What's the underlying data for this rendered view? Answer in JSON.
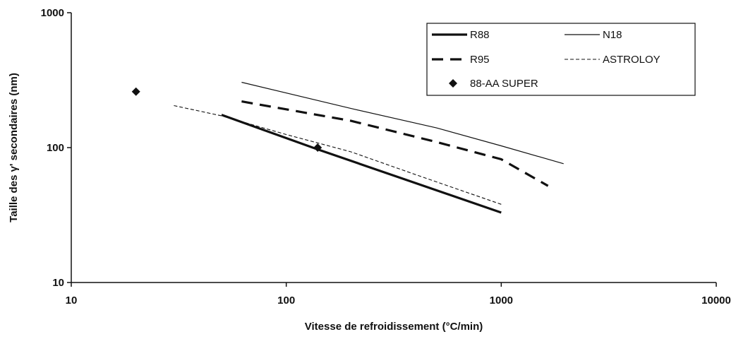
{
  "chart_data": {
    "type": "line",
    "title": "",
    "xlabel": "Vitesse de refroidissement (°C/min)",
    "ylabel": "Taille des γ' secondaires (nm)",
    "x_scale": "log",
    "y_scale": "log",
    "xlim": [
      10,
      10000
    ],
    "ylim": [
      10,
      1000
    ],
    "x_ticks": [
      10,
      100,
      1000,
      10000
    ],
    "x_tick_labels": [
      "10",
      "100",
      "1000",
      "10000"
    ],
    "y_ticks": [
      10,
      100,
      1000
    ],
    "y_tick_labels": [
      "10",
      "100",
      "1000"
    ],
    "grid": false,
    "legend_position": "top-right",
    "series": [
      {
        "name": "R88",
        "style": "thick-solid",
        "color": "#111111",
        "x": [
          50,
          140,
          1000
        ],
        "y": [
          175,
          97,
          33
        ]
      },
      {
        "name": "N18",
        "style": "thin-solid",
        "color": "#111111",
        "x": [
          62,
          200,
          500,
          1000,
          1950
        ],
        "y": [
          305,
          195,
          140,
          103,
          76
        ]
      },
      {
        "name": "R95",
        "style": "thick-dashed",
        "color": "#111111",
        "x": [
          62,
          200,
          500,
          1000,
          1650
        ],
        "y": [
          220,
          158,
          110,
          82,
          52
        ]
      },
      {
        "name": "ASTROLOY",
        "style": "thin-dashed",
        "color": "#111111",
        "x": [
          30,
          50,
          100,
          200,
          400,
          1000
        ],
        "y": [
          205,
          172,
          125,
          93,
          63,
          38
        ]
      },
      {
        "name": "88-AA SUPER",
        "style": "diamond-markers",
        "color": "#111111",
        "x": [
          20,
          140
        ],
        "y": [
          260,
          100
        ]
      }
    ]
  }
}
